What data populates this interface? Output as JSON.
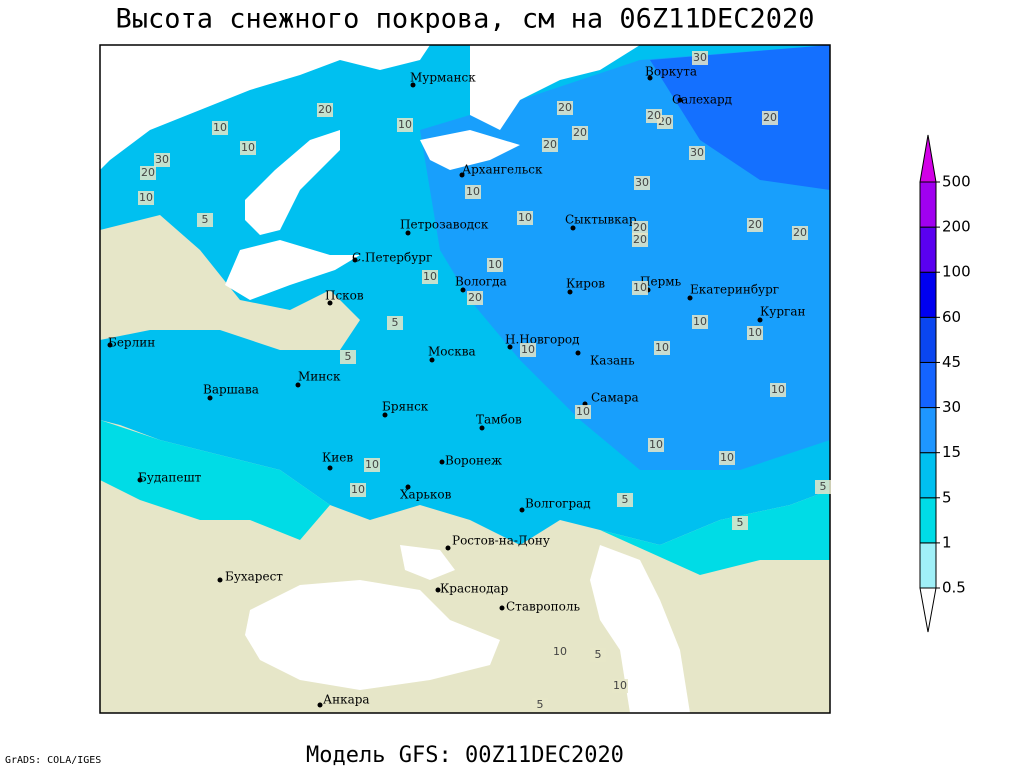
{
  "title": "Высота снежного покрова, см на 06Z11DEC2020",
  "map": {
    "cities": [
      "Мурманск",
      "Архангельск",
      "Воркута",
      "Салехард",
      "Петрозаводск",
      "Сыктывкар",
      "С.Петербург",
      "Псков",
      "Вологда",
      "Киров",
      "Пермь",
      "Екатеринбург",
      "Курган",
      "Берлин",
      "Н.Новгород",
      "Минск",
      "Москва",
      "Казань",
      "Варшава",
      "Самара",
      "Брянск",
      "Тамбов",
      "Киев",
      "Воронеж",
      "Будапешт",
      "Харьков",
      "Волгоград",
      "Ростов-на-Дону",
      "Бухарест",
      "Краснодар",
      "Ставрополь",
      "Анкара"
    ],
    "contour_labels": [
      30,
      20,
      20,
      20,
      10,
      30,
      20,
      10,
      10,
      5,
      20,
      20,
      20,
      20,
      20,
      20,
      10,
      30,
      20,
      10,
      10,
      10,
      30,
      10,
      10,
      20,
      10,
      20,
      10,
      5,
      10,
      10,
      10,
      10,
      5,
      10,
      10,
      10,
      10,
      5,
      5,
      5,
      5,
      10,
      5,
      10
    ]
  },
  "colorbar": {
    "levels": [
      0.5,
      1,
      5,
      15,
      30,
      45,
      60,
      100,
      200,
      500
    ],
    "colors": [
      "#ffffff",
      "#a0f0f8",
      "#00dce6",
      "#00c0f0",
      "#1e96ff",
      "#1464ff",
      "#0a46f0",
      "#0000f0",
      "#5a00f0",
      "#a000f0",
      "#d200e6"
    ]
  },
  "footer": {
    "model": "Модель GFS: 00Z11DEC2020",
    "credit": "GrADS: COLA/IGES"
  }
}
